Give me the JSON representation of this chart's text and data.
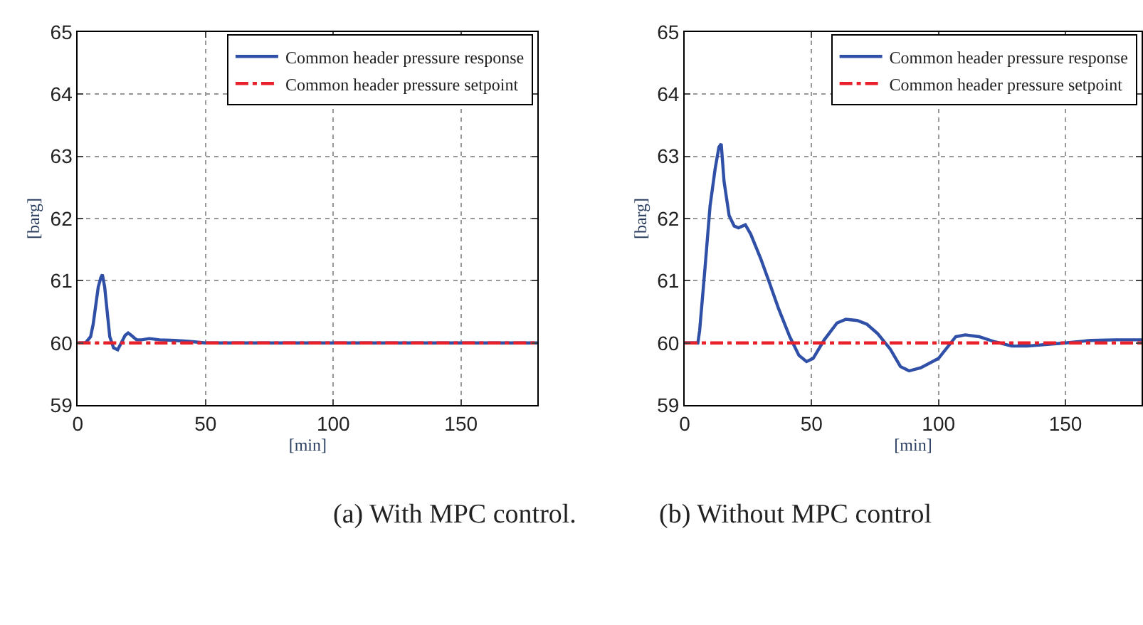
{
  "chart_data": [
    {
      "type": "line",
      "xlabel": "[min]",
      "ylabel": "[barg]",
      "xlim": [
        0,
        180
      ],
      "ylim": [
        59,
        65
      ],
      "xticks": [
        0,
        50,
        100,
        150
      ],
      "yticks": [
        59,
        60,
        61,
        62,
        63,
        64,
        65
      ],
      "grid": true,
      "legend": "top right",
      "marker": "none",
      "annotations": [
        "(a) With MPC control."
      ],
      "series": [
        {
          "name": "Common header pressure response",
          "color": "#3050a8",
          "line_style": "solid",
          "x": [
            0,
            3,
            5,
            6,
            7,
            8,
            9,
            9.6,
            10.5,
            11.5,
            12.5,
            14,
            15.6,
            17,
            18.5,
            19.7,
            21,
            23,
            25,
            28,
            32,
            38,
            45,
            50,
            60,
            100,
            150,
            180
          ],
          "values": [
            60,
            60,
            60.1,
            60.3,
            60.6,
            60.9,
            61.05,
            61.1,
            60.9,
            60.5,
            60.1,
            59.92,
            59.89,
            60.0,
            60.12,
            60.16,
            60.12,
            60.05,
            60.05,
            60.07,
            60.05,
            60.04,
            60.02,
            60,
            60,
            60,
            60,
            60
          ]
        },
        {
          "name": "Common header pressure setpoint",
          "color": "#e8202a",
          "line_style": "dashdot",
          "x": [
            0,
            180
          ],
          "values": [
            60,
            60
          ]
        }
      ]
    },
    {
      "type": "line",
      "xlabel": "[min]",
      "ylabel": "[barg]",
      "xlim": [
        0,
        180
      ],
      "ylim": [
        59,
        65
      ],
      "xticks": [
        0,
        50,
        100,
        150
      ],
      "yticks": [
        59,
        60,
        61,
        62,
        63,
        64,
        65
      ],
      "grid": true,
      "legend": "top right",
      "marker": "none",
      "annotations": [
        "(b) Without MPC control"
      ],
      "series": [
        {
          "name": "Common header pressure response",
          "color": "#3050a8",
          "line_style": "solid",
          "x": [
            0,
            5.2,
            5.9,
            8,
            10,
            12,
            13.5,
            14.4,
            15.5,
            17.5,
            19.5,
            21.2,
            23.9,
            26,
            30,
            33.1,
            37,
            41.4,
            45,
            48,
            50.6,
            55,
            60,
            63.5,
            68,
            71.8,
            76,
            81,
            85,
            88.4,
            93,
            100,
            106.8,
            110.5,
            116,
            122,
            128.8,
            135,
            150,
            160,
            170,
            180
          ],
          "values": [
            60,
            60,
            60.2,
            61.2,
            62.2,
            62.8,
            63.15,
            63.2,
            62.6,
            62.05,
            61.88,
            61.85,
            61.9,
            61.75,
            61.35,
            61.0,
            60.55,
            60.1,
            59.8,
            59.7,
            59.75,
            60.05,
            60.32,
            60.38,
            60.36,
            60.3,
            60.15,
            59.9,
            59.62,
            59.55,
            59.6,
            59.75,
            60.1,
            60.13,
            60.1,
            60.02,
            59.95,
            59.95,
            60.0,
            60.04,
            60.05,
            60.05
          ]
        },
        {
          "name": "Common header pressure setpoint",
          "color": "#e8202a",
          "line_style": "dashdot",
          "x": [
            0,
            180
          ],
          "values": [
            60,
            60
          ]
        }
      ]
    }
  ]
}
